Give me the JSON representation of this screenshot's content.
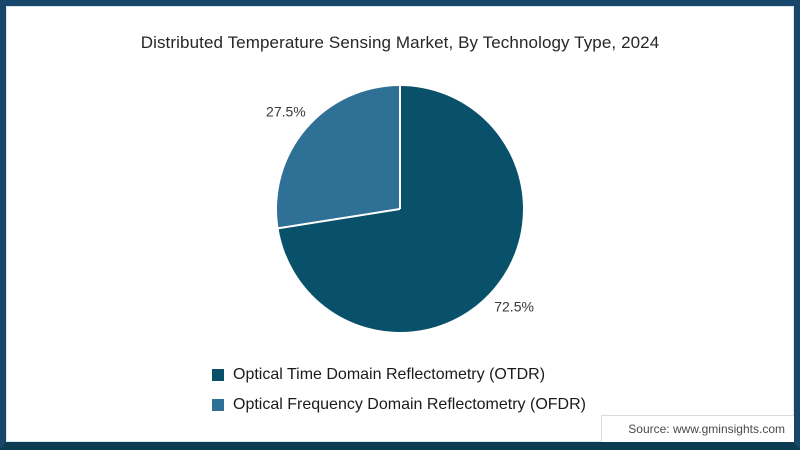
{
  "frame": {
    "border_color": "#17466a",
    "border_bottom_color": "#0d3c52",
    "inner_line_color": "#d8e6ee"
  },
  "title": "Distributed Temperature Sensing Market, By Technology Type, 2024",
  "source": "Source: www.gminsights.com",
  "chart_data": {
    "type": "pie",
    "title": "Distributed Temperature Sensing Market, By Technology Type, 2024",
    "start_angle_deg": 0,
    "direction": "clockwise",
    "divider_color": "#ffffff",
    "label_color": "#383838",
    "legend_position": "bottom-left",
    "slices": [
      {
        "label": "Optical Time Domain Reflectometry (OTDR)",
        "value": 72.5,
        "display": "72.5%",
        "color": "#09506b"
      },
      {
        "label": "Optical Frequency Domain Reflectometry (OFDR)",
        "value": 27.5,
        "display": "27.5%",
        "color": "#2f7096"
      }
    ]
  }
}
